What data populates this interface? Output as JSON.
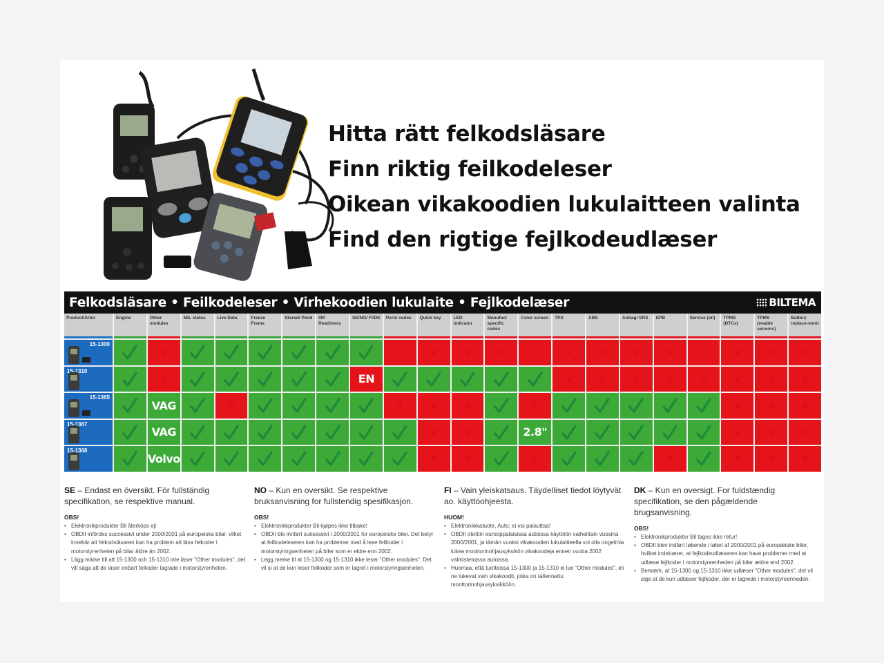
{
  "headings": [
    "Hitta rätt felkodsläsare",
    "Finn riktig feilkodeleser",
    "Oikean vikakoodien lukulaitteen valinta",
    "Find den rigtige fejlkodeudlæser"
  ],
  "table": {
    "title": "Felkodsläsare • Feilkodeleser • Virhekoodien lukulaite • Fejlkodelæser",
    "brand": "BILTEMA",
    "product_header": "Product/Artnr",
    "columns": [
      "Engine",
      "Other modules",
      "MIL status",
      "Live Data",
      "Freeze Frame",
      "Stored/ Pend",
      "I/M Readiness",
      "SE/NO/ FI/DK",
      "Perm codes",
      "Quick key",
      "LED indicator",
      "Manufact specific codes",
      "Color screen",
      "TPS",
      "ABS",
      "Airbag/ SRS",
      "EPB",
      "Service (oil)",
      "TPMS (DTCs)",
      "TPMS (enable sensors)",
      "Battery replace-ment"
    ],
    "rows": [
      {
        "product": "15-1300",
        "cells": [
          "G",
          "R",
          "G",
          "G",
          "G",
          "G",
          "G",
          "G",
          "R",
          "R",
          "R",
          "R",
          "R",
          "R",
          "R",
          "R",
          "R",
          "R",
          "R",
          "R",
          "R"
        ]
      },
      {
        "product": "15-1310",
        "cells": [
          "G",
          "R",
          "G",
          "G",
          "G",
          "G",
          "G",
          "EN",
          "G",
          "G",
          "G",
          "G",
          "G",
          "R",
          "R",
          "R",
          "R",
          "R",
          "R",
          "R",
          "R"
        ]
      },
      {
        "product": "15-1365",
        "cells": [
          "G",
          "VAG",
          "G",
          "R",
          "G",
          "G",
          "G",
          "G",
          "R",
          "R",
          "R",
          "G",
          "R",
          "G",
          "G",
          "G",
          "G",
          "G",
          "R",
          "R",
          "R"
        ]
      },
      {
        "product": "15-1367",
        "cells": [
          "G",
          "VAG",
          "G",
          "G",
          "G",
          "G",
          "G",
          "G",
          "G",
          "R",
          "R",
          "G",
          "2.8\"",
          "G",
          "G",
          "G",
          "G",
          "G",
          "R",
          "R",
          "R"
        ]
      },
      {
        "product": "15-1368",
        "cells": [
          "G",
          "Volvo",
          "G",
          "G",
          "G",
          "G",
          "G",
          "G",
          "G",
          "R",
          "R",
          "G",
          "R",
          "G",
          "G",
          "G",
          "R",
          "G",
          "R",
          "R",
          "R"
        ]
      }
    ],
    "text_cell_colors": {
      "EN": "R",
      "VAG": "G",
      "Volvo": "G",
      "2.8\"": "G"
    },
    "colors": {
      "green": "#3daa38",
      "red": "#e5141b",
      "blue": "#1c6bbf",
      "header_bar": "#111111"
    }
  },
  "notes": [
    {
      "code": "SE",
      "lead": " – Endast en översikt. För fullständig specifikation, se respektive manual.",
      "obs": "OBS!",
      "items": [
        "Elektronikprodukter Bil återköps ej!",
        "OBDII infördes successivt under 2000/2001 på europeiska bilar, vilket innebär att felkodsläsaren kan ha problem att läsa felkoder i motorstyrenheten på bilar äldre än 2002.",
        "Lägg märke till att 15-1300 och 15-1310 inte läser \"Other modules\", det vill säga att de läser enbart felkoder lagrade i motorstyrenheten."
      ]
    },
    {
      "code": "NO",
      "lead": " – Kun en oversikt. Se respektive bruksanvisning for fullstendig spesifikasjon.",
      "obs": "OBS!",
      "items": [
        "Elektronikkprodukter Bil kjøpes ikke tilbake!",
        "OBDII ble innført suksessivt i 2000/2001 for europeiske biler. Det betyr at feilkodeleseren kan ha problemer med å lese feilkoder i motorstyringsenheten på biler som er eldre enn 2002.",
        "Legg merke til at 15-1300 og 15-1310 ikke leser \"Other modules\". Det vil si at de kun leser feilkoder som er lagret i motorstyringsenheten."
      ]
    },
    {
      "code": "FI",
      "lead": " – Vain yleiskatsaus. Täydelliset tiedot löytyvät ao. käyttöohjeesta.",
      "obs": "HUOM!",
      "items": [
        "Elektroniikkatuote, Auto; ei voi palauttaa!",
        "OBDII otettiin eurooppalaisissa autoissa käyttöön vaiheittain vuosina 2000/2001, ja tämän vuoksi vikakoodien lukulaitteella voi olla ongelmia lukea moottorinohjausyksikön vikakoodeja ennen vuotta 2002 valmistetuissa autoissa.",
        "Huomaa, että tuotteissa 15-1300 ja 15-1310 ei lue \"Other modules\", eli ne lukevat vain vikakoodit, jotka on tallennettu moottorinohjausyksikköön."
      ]
    },
    {
      "code": "DK",
      "lead": " – Kun en oversigt. For fuldstændig specifikation, se den pågældende brugsanvisning.",
      "obs": "OBS!",
      "items": [
        "Elektronikprodukter Bil tages ikke retur!",
        "OBDII blev indført løbende i løbet af 2000/2001 på europæiske biler, hvilket indebærer, at fejlkodeudlæseren kan have problemer med at udlæse fejlkoder i motorstyreenheden på biler ældre end 2002.",
        "Bemærk, at 15-1300 og 15-1310 ikke udlæser \"Other modules\", det vil sige at de kun udlæser fejlkoder, der er lagrede i motorstyreenheden."
      ]
    }
  ]
}
